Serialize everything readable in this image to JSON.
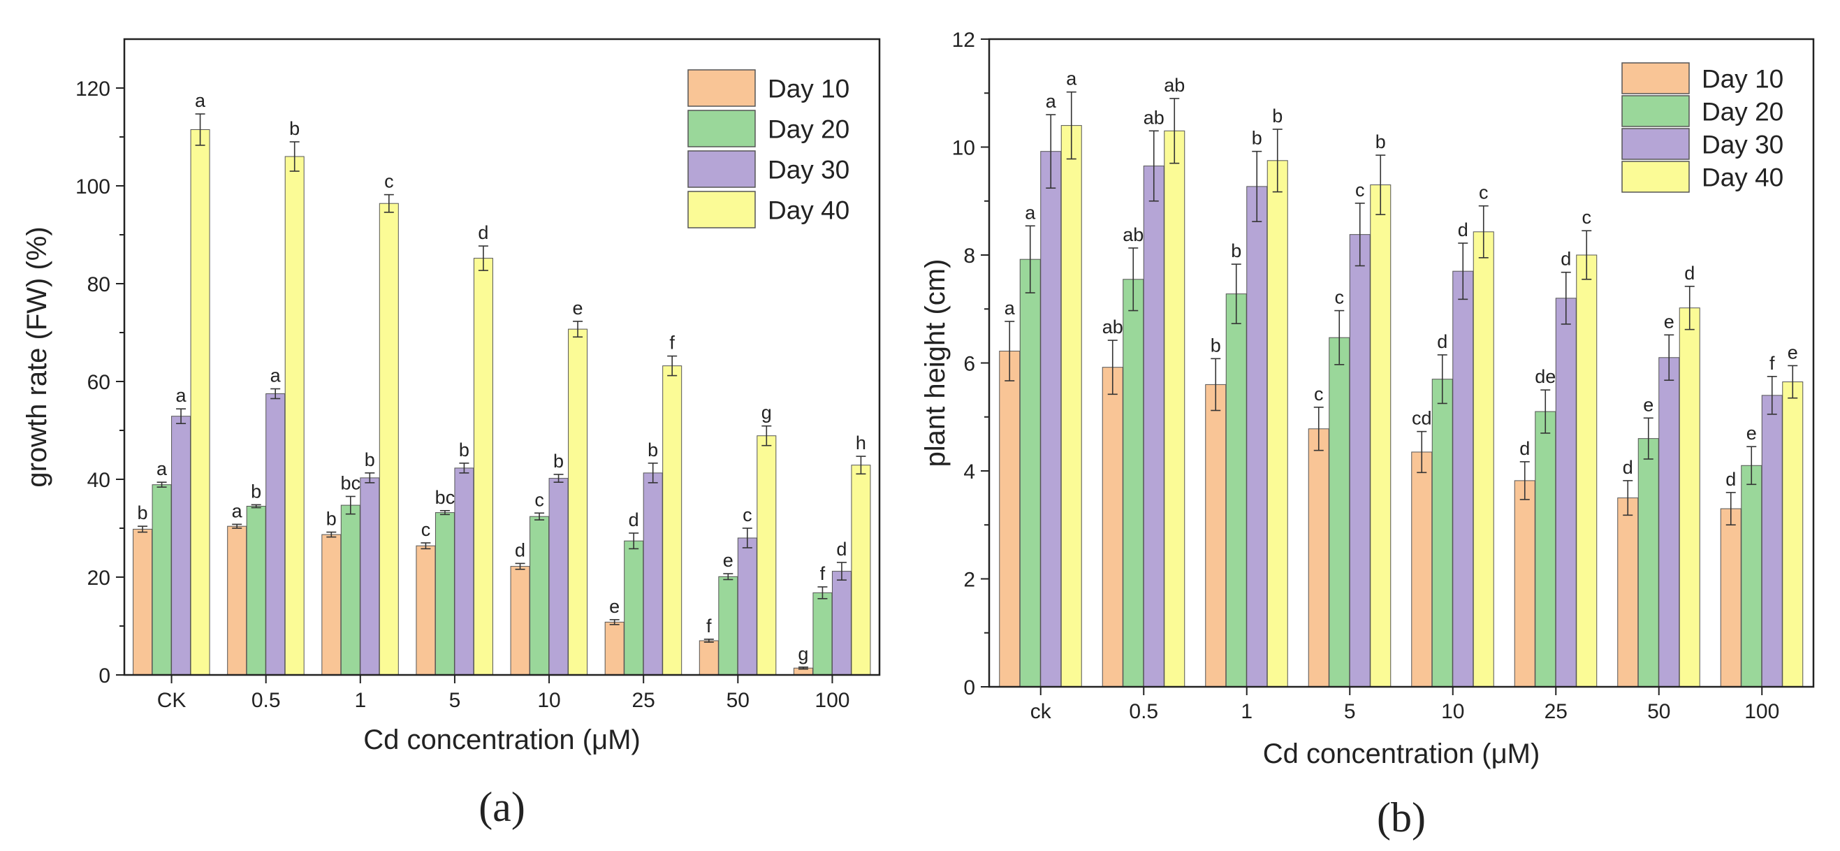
{
  "chart_data": [
    {
      "type": "bar",
      "panel_label": "(a)",
      "xlabel": "Cd concentration (μM)",
      "ylabel": "growth rate (FW) (%)",
      "ylim": [
        0,
        130
      ],
      "yticks": [
        "0",
        "20",
        "40",
        "60",
        "80",
        "100",
        "120"
      ],
      "categories": [
        "CK",
        "0.5",
        "1",
        "5",
        "10",
        "25",
        "50",
        "100"
      ],
      "legend_position": "top-right",
      "series": [
        {
          "name": "Day 10",
          "color": "#F9C596",
          "values": [
            29.8,
            30.4,
            28.7,
            26.4,
            22.2,
            10.8,
            7.0,
            1.4
          ],
          "errors": [
            0.6,
            0.4,
            0.5,
            0.6,
            0.6,
            0.5,
            0.3,
            0.2
          ],
          "letters": [
            "b",
            "a",
            "b",
            "c",
            "d",
            "e",
            "f",
            "g"
          ]
        },
        {
          "name": "Day 20",
          "color": "#9AD79A",
          "values": [
            38.9,
            34.5,
            34.7,
            33.2,
            32.4,
            27.4,
            20.1,
            16.8
          ],
          "errors": [
            0.5,
            0.3,
            1.8,
            0.4,
            0.7,
            1.6,
            0.6,
            1.2
          ],
          "letters": [
            "a",
            "b",
            "bc",
            "bc",
            "c",
            "d",
            "e",
            "f"
          ]
        },
        {
          "name": "Day 30",
          "color": "#B5A5D6",
          "values": [
            52.9,
            57.5,
            40.3,
            42.3,
            40.2,
            41.3,
            28.0,
            21.2
          ],
          "errors": [
            1.5,
            1.0,
            1.0,
            1.0,
            0.8,
            2.0,
            2.0,
            1.8
          ],
          "letters": [
            "a",
            "a",
            "b",
            "b",
            "b",
            "b",
            "c",
            "d"
          ]
        },
        {
          "name": "Day 40",
          "color": "#FBFB96",
          "values": [
            111.5,
            106.0,
            96.4,
            85.2,
            70.7,
            63.2,
            48.9,
            42.9
          ],
          "errors": [
            3.2,
            3.0,
            1.8,
            2.5,
            1.6,
            2.0,
            2.0,
            1.8
          ],
          "letters": [
            "a",
            "b",
            "c",
            "d",
            "e",
            "f",
            "g",
            "h"
          ]
        }
      ]
    },
    {
      "type": "bar",
      "panel_label": "(b)",
      "xlabel": "Cd concentration (μM)",
      "ylabel": "plant height (cm)",
      "ylim": [
        0,
        12
      ],
      "yticks": [
        "0",
        "2",
        "4",
        "6",
        "8",
        "10",
        "12"
      ],
      "categories": [
        "ck",
        "0.5",
        "1",
        "5",
        "10",
        "25",
        "50",
        "100"
      ],
      "legend_position": "top-right",
      "series": [
        {
          "name": "Day 10",
          "color": "#F9C596",
          "values": [
            6.22,
            5.92,
            5.6,
            4.78,
            4.35,
            3.82,
            3.5,
            3.3
          ],
          "errors": [
            0.55,
            0.5,
            0.48,
            0.4,
            0.38,
            0.35,
            0.32,
            0.3
          ],
          "letters": [
            "a",
            "ab",
            "b",
            "c",
            "cd",
            "d",
            "d",
            "d"
          ]
        },
        {
          "name": "Day 20",
          "color": "#9AD79A",
          "values": [
            7.92,
            7.55,
            7.28,
            6.47,
            5.7,
            5.1,
            4.6,
            4.1
          ],
          "errors": [
            0.62,
            0.58,
            0.55,
            0.5,
            0.45,
            0.4,
            0.38,
            0.35
          ],
          "letters": [
            "a",
            "ab",
            "b",
            "c",
            "d",
            "de",
            "e",
            "e"
          ]
        },
        {
          "name": "Day 30",
          "color": "#B5A5D6",
          "values": [
            9.92,
            9.65,
            9.27,
            8.38,
            7.7,
            7.2,
            6.1,
            5.4
          ],
          "errors": [
            0.68,
            0.65,
            0.65,
            0.58,
            0.52,
            0.48,
            0.42,
            0.35
          ],
          "letters": [
            "a",
            "ab",
            "b",
            "c",
            "d",
            "d",
            "e",
            "f"
          ]
        },
        {
          "name": "Day 40",
          "color": "#FBFB96",
          "values": [
            10.4,
            10.3,
            9.75,
            9.3,
            8.43,
            8.0,
            7.02,
            5.65
          ],
          "errors": [
            0.62,
            0.6,
            0.58,
            0.55,
            0.48,
            0.45,
            0.4,
            0.3
          ],
          "letters": [
            "a",
            "ab",
            "b",
            "b",
            "c",
            "c",
            "d",
            "e"
          ]
        }
      ]
    }
  ]
}
